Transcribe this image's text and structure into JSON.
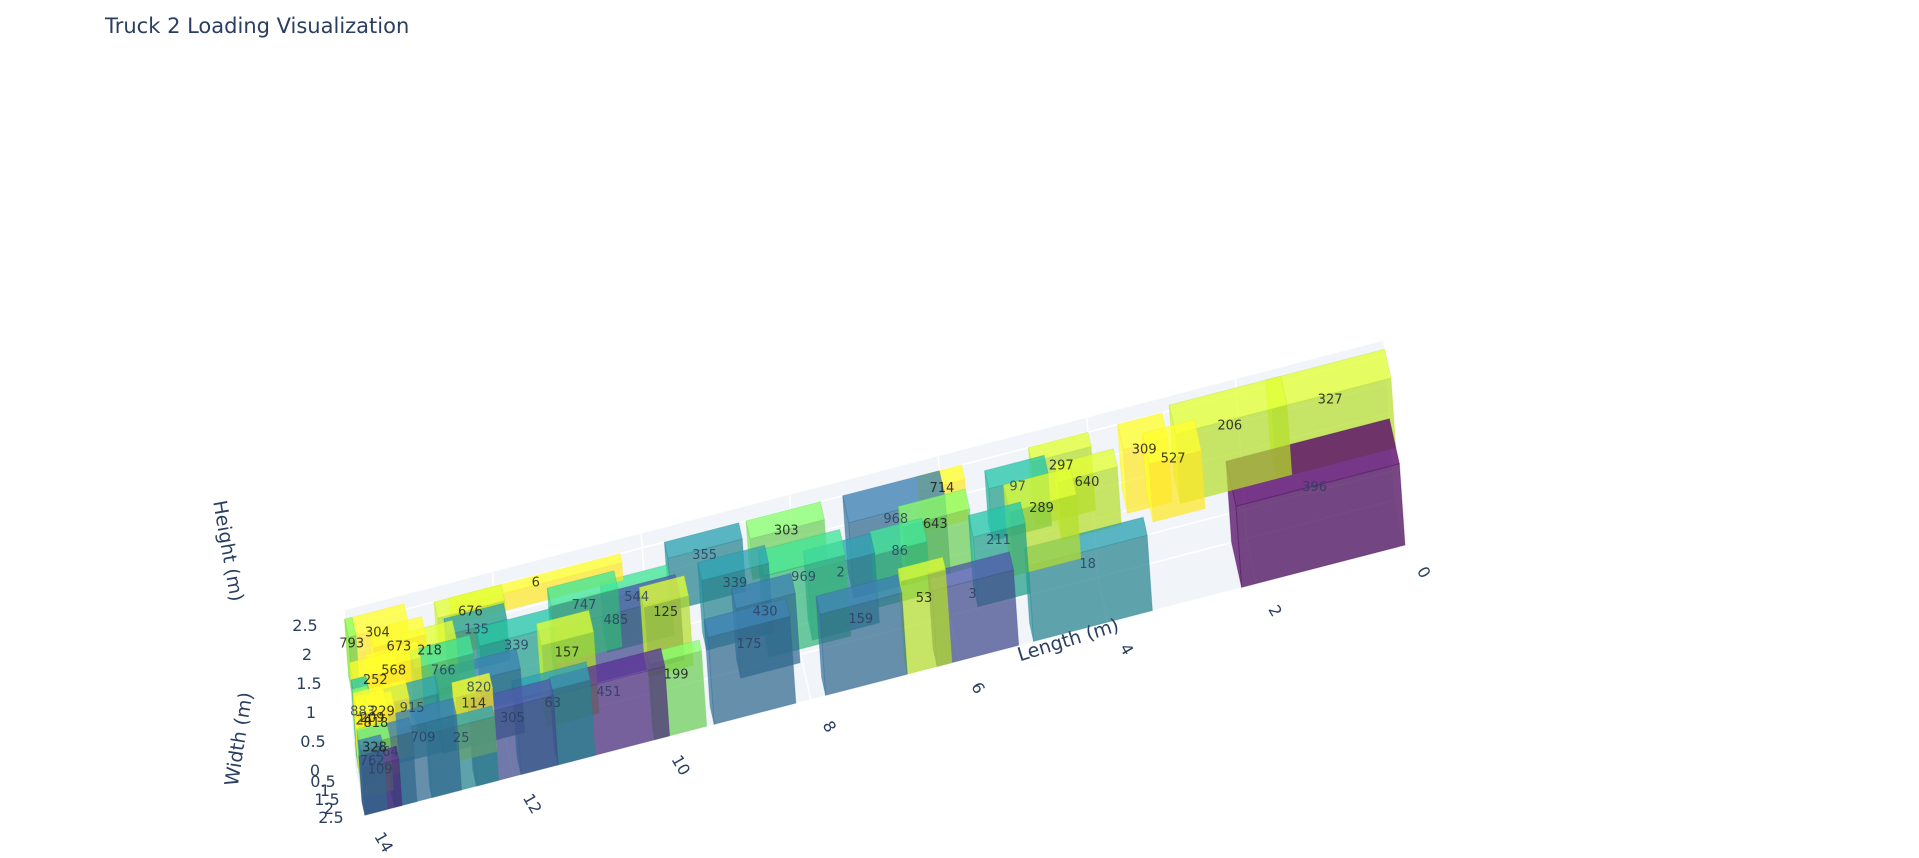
{
  "chart_data": {
    "type": "3d-box",
    "title": "Truck 2 Loading Visualization",
    "x_axis": {
      "label": "Length (m)",
      "ticks": [
        "0",
        "2",
        "4",
        "6",
        "8",
        "10",
        "12",
        "14"
      ],
      "range": [
        0,
        14
      ]
    },
    "y_axis": {
      "label": "Width (m)",
      "ticks": [
        "0.5",
        "1",
        "1.5",
        "2",
        "2.5"
      ],
      "range": [
        0,
        2.5
      ]
    },
    "z_axis": {
      "label": "Height (m)",
      "ticks": [
        "0",
        "0.5",
        "1",
        "1.5",
        "2",
        "2.5"
      ],
      "range": [
        0,
        2.5
      ]
    },
    "grid": true,
    "colorscale": [
      "#440154",
      "#482878",
      "#3e4989",
      "#31688e",
      "#26828e",
      "#1f9e89",
      "#35b779",
      "#6ece58",
      "#b5de2b",
      "#fde725"
    ],
    "boxes": [
      {
        "id": "396",
        "x": [
          0,
          2.2
        ],
        "y": [
          0,
          2.5
        ],
        "z": [
          0,
          1.4
        ],
        "color": 0
      },
      {
        "id": "327",
        "x": [
          0,
          1.6
        ],
        "y": [
          0,
          1.6
        ],
        "z": [
          1.4,
          2.6
        ],
        "color": 8
      },
      {
        "id": "206",
        "x": [
          1.4,
          2.9
        ],
        "y": [
          0,
          1.6
        ],
        "z": [
          1.4,
          2.6
        ],
        "color": 8
      },
      {
        "id": "527",
        "x": [
          2.6,
          3.3
        ],
        "y": [
          0.5,
          2.2
        ],
        "z": [
          1.4,
          2.4
        ],
        "color": 9
      },
      {
        "id": "309",
        "x": [
          3.0,
          3.6
        ],
        "y": [
          0,
          1.4
        ],
        "z": [
          1.4,
          2.5
        ],
        "color": 9
      },
      {
        "id": "640",
        "x": [
          3.7,
          4.5
        ],
        "y": [
          0.6,
          1.6
        ],
        "z": [
          1.3,
          2.3
        ],
        "color": 8
      },
      {
        "id": "297",
        "x": [
          4.0,
          4.8
        ],
        "y": [
          0.0,
          0.8
        ],
        "z": [
          1.4,
          2.5
        ],
        "color": 8
      },
      {
        "id": "18",
        "x": [
          3.4,
          5.0
        ],
        "y": [
          1.5,
          2.5
        ],
        "z": [
          0,
          1.3
        ],
        "color": 4
      },
      {
        "id": "289",
        "x": [
          4.3,
          5.2
        ],
        "y": [
          1.0,
          2.5
        ],
        "z": [
          1.2,
          2.3
        ],
        "color": 8
      },
      {
        "id": "97",
        "x": [
          4.6,
          5.4
        ],
        "y": [
          0,
          1.0
        ],
        "z": [
          1.4,
          2.3
        ],
        "color": 5
      },
      {
        "id": "211",
        "x": [
          5.0,
          5.7
        ],
        "y": [
          1.2,
          2.4
        ],
        "z": [
          0.8,
          2.0
        ],
        "color": 5
      },
      {
        "id": "3",
        "x": [
          5.2,
          6.3
        ],
        "y": [
          1.5,
          2.5
        ],
        "z": [
          0,
          1.3
        ],
        "color": 2
      },
      {
        "id": "714",
        "x": [
          5.7,
          6.3
        ],
        "y": [
          0,
          0.8
        ],
        "z": [
          1.8,
          2.5
        ],
        "color": 9
      },
      {
        "id": "643",
        "x": [
          5.7,
          6.6
        ],
        "y": [
          0.7,
          1.8
        ],
        "z": [
          1.3,
          2.3
        ],
        "color": 7
      },
      {
        "id": "53",
        "x": [
          6.1,
          6.7
        ],
        "y": [
          1.8,
          2.5
        ],
        "z": [
          0,
          1.6
        ],
        "color": 8
      },
      {
        "id": "86",
        "x": [
          6.3,
          7.0
        ],
        "y": [
          0.7,
          2.0
        ],
        "z": [
          1.1,
          2.0
        ],
        "color": 6
      },
      {
        "id": "968",
        "x": [
          6.0,
          7.3
        ],
        "y": [
          0,
          1.5
        ],
        "z": [
          1.2,
          2.5
        ],
        "color": 3
      },
      {
        "id": "159",
        "x": [
          6.7,
          7.8
        ],
        "y": [
          1.5,
          2.5
        ],
        "z": [
          0,
          1.4
        ],
        "color": 3
      },
      {
        "id": "2",
        "x": [
          7.0,
          7.9
        ],
        "y": [
          0.8,
          1.9
        ],
        "z": [
          0.8,
          2.0
        ],
        "color": 4
      },
      {
        "id": "303",
        "x": [
          7.6,
          8.6
        ],
        "y": [
          0,
          1.0
        ],
        "z": [
          1.8,
          2.5
        ],
        "color": 7
      },
      {
        "id": "969",
        "x": [
          7.4,
          8.5
        ],
        "y": [
          0.8,
          2.2
        ],
        "z": [
          0.8,
          2.2
        ],
        "color": 6
      },
      {
        "id": "430",
        "x": [
          8.1,
          8.9
        ],
        "y": [
          1.2,
          2.3
        ],
        "z": [
          0.6,
          1.8
        ],
        "color": 3
      },
      {
        "id": "175",
        "x": [
          8.2,
          9.3
        ],
        "y": [
          1.5,
          2.5
        ],
        "z": [
          0,
          1.5
        ],
        "color": 3
      },
      {
        "id": "339",
        "x": [
          8.4,
          9.3
        ],
        "y": [
          0.6,
          1.6
        ],
        "z": [
          1.0,
          2.2
        ],
        "color": 4
      },
      {
        "id": "355",
        "x": [
          8.7,
          9.7
        ],
        "y": [
          0,
          0.9
        ],
        "z": [
          1.6,
          2.5
        ],
        "color": 4
      },
      {
        "id": "125",
        "x": [
          9.5,
          10.1
        ],
        "y": [
          0.8,
          1.9
        ],
        "z": [
          0.9,
          2.1
        ],
        "color": 8
      },
      {
        "id": "199",
        "x": [
          9.4,
          10.1
        ],
        "y": [
          1.9,
          2.5
        ],
        "z": [
          0,
          1.3
        ],
        "color": 7
      },
      {
        "id": "544",
        "x": [
          9.7,
          10.6
        ],
        "y": [
          0.3,
          1.3
        ],
        "z": [
          1.3,
          2.2
        ],
        "color": 6
      },
      {
        "id": "485",
        "x": [
          9.6,
          11.3
        ],
        "y": [
          0.3,
          1.5
        ],
        "z": [
          0.9,
          2.0
        ],
        "color": 2
      },
      {
        "id": "451",
        "x": [
          9.9,
          11.4
        ],
        "y": [
          1.5,
          2.5
        ],
        "z": [
          0,
          1.2
        ],
        "color": 1
      },
      {
        "id": "747",
        "x": [
          10.4,
          11.3
        ],
        "y": [
          0.2,
          1.2
        ],
        "z": [
          1.3,
          2.3
        ],
        "color": 6
      },
      {
        "id": "6",
        "x": [
          10.3,
          12.6
        ],
        "y": [
          0,
          0.5
        ],
        "z": [
          2.2,
          2.5
        ],
        "color": 9
      },
      {
        "id": "157",
        "x": [
          10.8,
          11.5
        ],
        "y": [
          1.0,
          2.2
        ],
        "z": [
          0.6,
          2.0
        ],
        "color": 8
      },
      {
        "id": "63",
        "x": [
          10.9,
          11.9
        ],
        "y": [
          1.5,
          2.5
        ],
        "z": [
          0,
          1.3
        ],
        "color": 4
      },
      {
        "id": "339b",
        "label": "339",
        "x": [
          11.3,
          12.3
        ],
        "y": [
          0.7,
          1.7
        ],
        "z": [
          1.0,
          2.1
        ],
        "color": 5
      },
      {
        "id": "305",
        "x": [
          11.4,
          12.5
        ],
        "y": [
          1.6,
          2.5
        ],
        "z": [
          0,
          1.2
        ],
        "color": 2
      },
      {
        "id": "676",
        "x": [
          11.9,
          12.8
        ],
        "y": [
          0,
          0.9
        ],
        "z": [
          1.8,
          2.5
        ],
        "color": 8
      },
      {
        "id": "135",
        "x": [
          11.9,
          12.7
        ],
        "y": [
          0.4,
          1.3
        ],
        "z": [
          1.6,
          2.3
        ],
        "color": 4
      },
      {
        "id": "820",
        "x": [
          11.8,
          12.9
        ],
        "y": [
          1.1,
          2.2
        ],
        "z": [
          0.6,
          1.7
        ],
        "color": 3
      },
      {
        "id": "114",
        "x": [
          12.2,
          12.7
        ],
        "y": [
          1.7,
          2.5
        ],
        "z": [
          0.5,
          1.6
        ],
        "color": 9
      },
      {
        "id": "25",
        "x": [
          12.2,
          13.1
        ],
        "y": [
          1.9,
          2.5
        ],
        "z": [
          0,
          1.1
        ],
        "color": 4
      },
      {
        "id": "766",
        "x": [
          12.4,
          13.2
        ],
        "y": [
          1.0,
          2.0
        ],
        "z": [
          1.0,
          2.1
        ],
        "color": 6
      },
      {
        "id": "218",
        "x": [
          12.6,
          13.3
        ],
        "y": [
          0.6,
          1.6
        ],
        "z": [
          1.4,
          2.3
        ],
        "color": 8
      },
      {
        "id": "709",
        "x": [
          12.7,
          13.6
        ],
        "y": [
          1.6,
          2.5
        ],
        "z": [
          0,
          1.3
        ],
        "color": 3
      },
      {
        "id": "915",
        "x": [
          12.9,
          13.6
        ],
        "y": [
          1.1,
          2.1
        ],
        "z": [
          0.6,
          1.6
        ],
        "color": 4
      },
      {
        "id": "673",
        "x": [
          13.0,
          13.7
        ],
        "y": [
          0.6,
          1.6
        ],
        "z": [
          1.6,
          2.5
        ],
        "color": 9
      },
      {
        "id": "568",
        "x": [
          13.1,
          13.8
        ],
        "y": [
          0.9,
          1.8
        ],
        "z": [
          1.3,
          2.2
        ],
        "color": 9
      },
      {
        "id": "304",
        "x": [
          13.2,
          14.0
        ],
        "y": [
          0,
          1.0
        ],
        "z": [
          1.8,
          2.6
        ],
        "color": 9
      },
      {
        "id": "764",
        "x": [
          13.3,
          14.0
        ],
        "y": [
          1.7,
          2.5
        ],
        "z": [
          0,
          1.2
        ],
        "color": 3
      },
      {
        "id": "229",
        "x": [
          13.3,
          14.0
        ],
        "y": [
          1.2,
          2.2
        ],
        "z": [
          0.7,
          1.7
        ],
        "color": 9
      },
      {
        "id": "252",
        "x": [
          13.4,
          14.0
        ],
        "y": [
          0.8,
          1.8
        ],
        "z": [
          1.2,
          2.1
        ],
        "color": 9
      },
      {
        "id": "818",
        "x": [
          13.5,
          14.0
        ],
        "y": [
          1.3,
          2.3
        ],
        "z": [
          0.5,
          1.6
        ],
        "color": 9
      },
      {
        "id": "209",
        "x": [
          13.6,
          14.0
        ],
        "y": [
          1.4,
          2.4
        ],
        "z": [
          0.7,
          1.7
        ],
        "color": 9
      },
      {
        "id": "328",
        "x": [
          13.6,
          14.0
        ],
        "y": [
          1.6,
          2.5
        ],
        "z": [
          0.3,
          1.2
        ],
        "color": 7
      },
      {
        "id": "109",
        "x": [
          13.5,
          14.0
        ],
        "y": [
          1.8,
          2.5
        ],
        "z": [
          0,
          0.8
        ],
        "color": 1
      },
      {
        "id": "793",
        "x": [
          13.9,
          14.0
        ],
        "y": [
          0,
          1.0
        ],
        "z": [
          1.6,
          2.6
        ],
        "color": 7
      },
      {
        "id": "883",
        "x": [
          13.8,
          14.0
        ],
        "y": [
          0.8,
          2.0
        ],
        "z": [
          0.5,
          1.8
        ],
        "color": 5
      },
      {
        "id": "24",
        "x": [
          13.8,
          14.0
        ],
        "y": [
          1.0,
          2.2
        ],
        "z": [
          0.4,
          1.7
        ],
        "color": 7
      },
      {
        "id": "762",
        "x": [
          13.7,
          14.0
        ],
        "y": [
          1.9,
          2.5
        ],
        "z": [
          0,
          1.1
        ],
        "color": 3
      }
    ]
  }
}
